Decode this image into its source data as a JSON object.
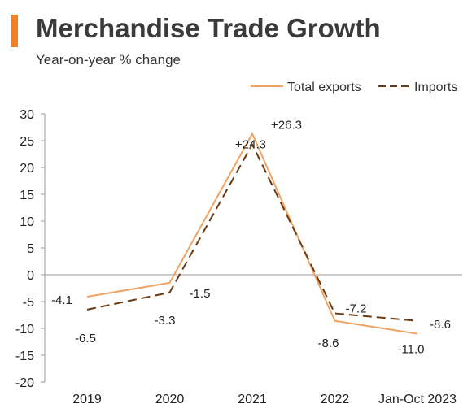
{
  "header": {
    "title": "Merchandise Trade Growth",
    "subtitle": "Year-on-year % change",
    "accent_color": "#f07f26"
  },
  "chart_data": {
    "type": "line",
    "title": "Merchandise Trade Growth",
    "subtitle": "Year-on-year % change",
    "xlabel": "",
    "ylabel": "",
    "categories": [
      "2019",
      "2020",
      "2021",
      "2022",
      "Jan-Oct 2023"
    ],
    "ylim": [
      -20,
      30
    ],
    "yticks": [
      30,
      25,
      20,
      15,
      10,
      5,
      0,
      -5,
      -10,
      -15,
      -20
    ],
    "ytick_labels": [
      "30",
      "25",
      "20",
      "15",
      "10",
      "5",
      "0",
      "-5",
      "-10",
      "-15",
      "-20"
    ],
    "grid": false,
    "legend": "top-right",
    "series": [
      {
        "name": "Total exports",
        "style": "solid",
        "color": "#efa463",
        "values": [
          -4.1,
          -1.5,
          26.3,
          -8.6,
          -11.0
        ],
        "labels": [
          "-4.1",
          "-1.5",
          "+26.3",
          "-8.6",
          "-11.0"
        ]
      },
      {
        "name": "Imports",
        "style": "dashed",
        "color": "#6b3a12",
        "values": [
          -6.5,
          -3.3,
          24.3,
          -7.2,
          -8.6
        ],
        "labels": [
          "-6.5",
          "-3.3",
          "+24.3",
          "-7.2",
          "-8.6"
        ]
      }
    ]
  }
}
